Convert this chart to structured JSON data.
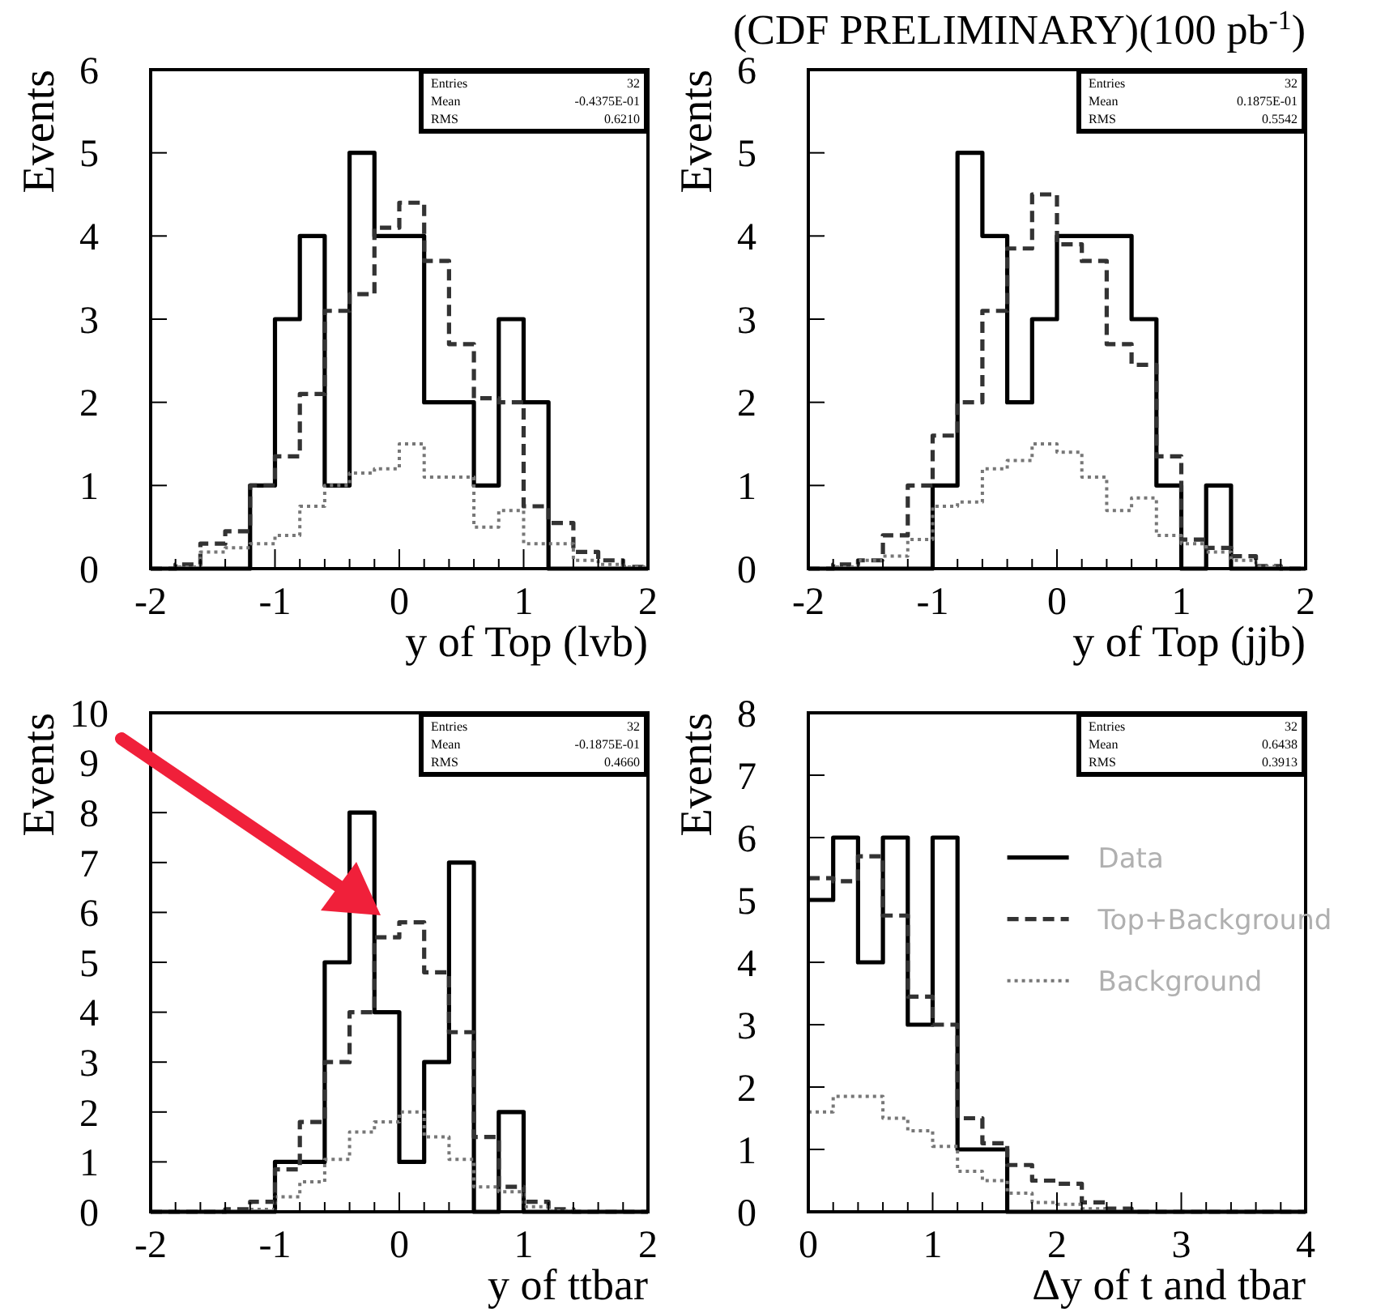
{
  "chart_data": [
    {
      "type": "histogram",
      "xlabel": "y of Top (lvb)",
      "ylabel": "Events",
      "bins": [
        -2,
        -1.8,
        -1.6,
        -1.4,
        -1.2,
        -1,
        -0.8,
        -0.6,
        -0.4,
        -0.2,
        0,
        0.2,
        0.4,
        0.6,
        0.8,
        1,
        1.2,
        1.4,
        1.6,
        1.8,
        2
      ],
      "xlim": [
        -2,
        2
      ],
      "xticks": [
        -2,
        {
          "value": -1.8,
          "label": null
        },
        {
          "value": -1.6,
          "label": null
        },
        {
          "value": -1.4,
          "label": null
        },
        {
          "value": -1.2,
          "label": null
        },
        -1,
        {
          "value": -0.8,
          "label": null
        },
        {
          "value": -0.6,
          "label": null
        },
        {
          "value": -0.4,
          "label": null
        },
        {
          "value": -0.2,
          "label": null
        },
        0,
        {
          "value": 0.2,
          "label": null
        },
        {
          "value": 0.4,
          "label": null
        },
        {
          "value": 0.6,
          "label": null
        },
        {
          "value": 0.8,
          "label": null
        },
        1,
        {
          "value": 1.2,
          "label": null
        },
        {
          "value": 1.4,
          "label": null
        },
        {
          "value": 1.6,
          "label": null
        },
        {
          "value": 1.8,
          "label": null
        },
        2
      ],
      "ylim": [
        0,
        6
      ],
      "yticks": [
        0,
        1,
        2,
        3,
        4,
        5,
        6
      ],
      "annotations": [
        "Entries",
        "32",
        "Mean",
        "-0.4375E-01",
        "RMS",
        "0.6210"
      ],
      "series": [
        {
          "color": "#000000",
          "line_style": "solid",
          "values": [
            0,
            0,
            0,
            0,
            1,
            3,
            4,
            1,
            5,
            4,
            4,
            2,
            2,
            1,
            3,
            2,
            0,
            0,
            0,
            0
          ]
        },
        {
          "color": "#333333",
          "line_style": "dashed",
          "values": [
            0,
            0.05,
            0.3,
            0.45,
            1,
            1.35,
            2.1,
            3.1,
            3.3,
            4.1,
            4.4,
            3.7,
            2.7,
            2.05,
            2,
            0.75,
            0.55,
            0.2,
            0.1,
            0.02
          ]
        },
        {
          "color": "#777777",
          "line_style": "dotted",
          "values": [
            0,
            0.02,
            0.2,
            0.25,
            0.3,
            0.4,
            0.75,
            1,
            1.15,
            1.2,
            1.5,
            1.1,
            1.1,
            0.5,
            0.7,
            0.3,
            0.3,
            0.1,
            0.05,
            0.02
          ]
        }
      ]
    },
    {
      "type": "histogram",
      "title": "(CDF PRELIMINARY)(100 pb$^{-1}$)",
      "xlabel": "y of Top (jjb)",
      "ylabel": "Events",
      "bins": [
        -2,
        -1.8,
        -1.6,
        -1.4,
        -1.2,
        -1,
        -0.8,
        -0.6,
        -0.4,
        -0.2,
        0,
        0.2,
        0.4,
        0.6,
        0.8,
        1,
        1.2,
        1.4,
        1.6,
        1.8,
        2
      ],
      "xlim": [
        -2,
        2
      ],
      "xticks": [
        -2,
        {
          "value": -1.8,
          "label": null
        },
        {
          "value": -1.6,
          "label": null
        },
        {
          "value": -1.4,
          "label": null
        },
        {
          "value": -1.2,
          "label": null
        },
        -1,
        {
          "value": -0.8,
          "label": null
        },
        {
          "value": -0.6,
          "label": null
        },
        {
          "value": -0.4,
          "label": null
        },
        {
          "value": -0.2,
          "label": null
        },
        0,
        {
          "value": 0.2,
          "label": null
        },
        {
          "value": 0.4,
          "label": null
        },
        {
          "value": 0.6,
          "label": null
        },
        {
          "value": 0.8,
          "label": null
        },
        1,
        {
          "value": 1.2,
          "label": null
        },
        {
          "value": 1.4,
          "label": null
        },
        {
          "value": 1.6,
          "label": null
        },
        {
          "value": 1.8,
          "label": null
        },
        2
      ],
      "ylim": [
        0,
        6
      ],
      "yticks": [
        0,
        1,
        2,
        3,
        4,
        5,
        6
      ],
      "annotations": [
        "Entries",
        "32",
        "Mean",
        "0.1875E-01",
        "RMS",
        "0.5542"
      ],
      "series": [
        {
          "color": "#000000",
          "line_style": "solid",
          "values": [
            0,
            0,
            0,
            0,
            0,
            1,
            5,
            4,
            2,
            3,
            4,
            4,
            4,
            3,
            1,
            0,
            1,
            0,
            0,
            0
          ]
        },
        {
          "color": "#333333",
          "line_style": "dashed",
          "values": [
            0,
            0.05,
            0.1,
            0.4,
            1,
            1.6,
            2,
            3.1,
            3.85,
            4.5,
            3.9,
            3.7,
            2.7,
            2.45,
            1.35,
            0.35,
            0.25,
            0.15,
            0.03,
            0
          ]
        },
        {
          "color": "#777777",
          "line_style": "dotted",
          "values": [
            0,
            0.02,
            0.1,
            0.15,
            0.35,
            0.75,
            0.8,
            1.2,
            1.3,
            1.5,
            1.4,
            1.1,
            0.7,
            0.85,
            0.4,
            0.3,
            0.2,
            0.1,
            0.03,
            0
          ]
        }
      ]
    },
    {
      "type": "histogram",
      "xlabel": "y of ttbar",
      "ylabel": "Events",
      "bins": [
        -2,
        -1.8,
        -1.6,
        -1.4,
        -1.2,
        -1,
        -0.8,
        -0.6,
        -0.4,
        -0.2,
        0,
        0.2,
        0.4,
        0.6,
        0.8,
        1,
        1.2,
        1.4,
        1.6,
        1.8,
        2
      ],
      "xlim": [
        -2,
        2
      ],
      "xticks": [
        -2,
        {
          "value": -1.8,
          "label": null
        },
        {
          "value": -1.6,
          "label": null
        },
        {
          "value": -1.4,
          "label": null
        },
        {
          "value": -1.2,
          "label": null
        },
        -1,
        {
          "value": -0.8,
          "label": null
        },
        {
          "value": -0.6,
          "label": null
        },
        {
          "value": -0.4,
          "label": null
        },
        {
          "value": -0.2,
          "label": null
        },
        0,
        {
          "value": 0.2,
          "label": null
        },
        {
          "value": 0.4,
          "label": null
        },
        {
          "value": 0.6,
          "label": null
        },
        {
          "value": 0.8,
          "label": null
        },
        1,
        {
          "value": 1.2,
          "label": null
        },
        {
          "value": 1.4,
          "label": null
        },
        {
          "value": 1.6,
          "label": null
        },
        {
          "value": 1.8,
          "label": null
        },
        2
      ],
      "ylim": [
        0,
        10
      ],
      "yticks": [
        0,
        1,
        2,
        3,
        4,
        5,
        6,
        7,
        8,
        9,
        10
      ],
      "annotations": [
        "Entries",
        "32",
        "Mean",
        "-0.1875E-01",
        "RMS",
        "0.4660"
      ],
      "series": [
        {
          "color": "#000000",
          "line_style": "solid",
          "values": [
            0,
            0,
            0,
            0,
            0,
            1,
            1,
            5,
            8,
            4,
            1,
            3,
            7,
            0,
            2,
            0,
            0,
            0,
            0,
            0
          ]
        },
        {
          "color": "#333333",
          "line_style": "dashed",
          "values": [
            0,
            0,
            0,
            0.05,
            0.2,
            0.85,
            1.8,
            3,
            4,
            5.5,
            5.8,
            4.8,
            3.6,
            1.5,
            0.5,
            0.2,
            0.05,
            0,
            0,
            0
          ]
        },
        {
          "color": "#777777",
          "line_style": "dotted",
          "values": [
            0,
            0,
            0,
            0,
            0.05,
            0.3,
            0.6,
            1.05,
            1.6,
            1.8,
            2,
            1.5,
            1.05,
            0.5,
            0.4,
            0.1,
            0.02,
            0,
            0,
            0
          ]
        }
      ]
    },
    {
      "type": "histogram",
      "xlabel": "Δy of t and tbar",
      "ylabel": "Events",
      "bins": [
        0,
        0.2,
        0.4,
        0.6,
        0.8,
        1,
        1.2,
        1.4,
        1.6,
        1.8,
        2,
        2.2,
        2.4,
        2.6,
        2.8,
        3,
        3.2,
        3.4,
        3.6,
        3.8,
        4
      ],
      "xlim": [
        0,
        4
      ],
      "xticks": [
        0,
        {
          "value": 0.2,
          "label": null
        },
        {
          "value": 0.4,
          "label": null
        },
        {
          "value": 0.6,
          "label": null
        },
        {
          "value": 0.8,
          "label": null
        },
        1,
        {
          "value": 1.2,
          "label": null
        },
        {
          "value": 1.4,
          "label": null
        },
        {
          "value": 1.6,
          "label": null
        },
        {
          "value": 1.8,
          "label": null
        },
        2,
        {
          "value": 2.2,
          "label": null
        },
        {
          "value": 2.4,
          "label": null
        },
        {
          "value": 2.6,
          "label": null
        },
        {
          "value": 2.8,
          "label": null
        },
        3,
        {
          "value": 3.2,
          "label": null
        },
        {
          "value": 3.4,
          "label": null
        },
        {
          "value": 3.6,
          "label": null
        },
        {
          "value": 3.8,
          "label": null
        },
        4
      ],
      "ylim": [
        0,
        8
      ],
      "yticks": [
        0,
        1,
        2,
        3,
        4,
        5,
        6,
        7,
        8
      ],
      "legend": "right",
      "annotations": [
        "Entries",
        "32",
        "Mean",
        "0.6438",
        "RMS",
        "0.3913"
      ],
      "series": [
        {
          "name": "Data",
          "color": "#000000",
          "line_style": "solid",
          "values": [
            5,
            6,
            4,
            6,
            3,
            6,
            1,
            1,
            0,
            0,
            0,
            0,
            0,
            0,
            0,
            0,
            0,
            0,
            0,
            0
          ]
        },
        {
          "name": "Top+Background",
          "color": "#333333",
          "line_style": "dashed",
          "values": [
            5.35,
            5.3,
            5.7,
            4.75,
            3.45,
            3,
            1.5,
            1.1,
            0.75,
            0.5,
            0.45,
            0.15,
            0.05,
            0,
            0,
            0,
            0,
            0,
            0,
            0
          ]
        },
        {
          "name": "Background",
          "color": "#777777",
          "line_style": "dotted",
          "values": [
            1.6,
            1.85,
            1.85,
            1.5,
            1.3,
            1.05,
            0.65,
            0.5,
            0.3,
            0.15,
            0.12,
            0.05,
            0,
            0,
            0,
            0,
            0,
            0,
            0,
            0
          ]
        }
      ]
    }
  ]
}
